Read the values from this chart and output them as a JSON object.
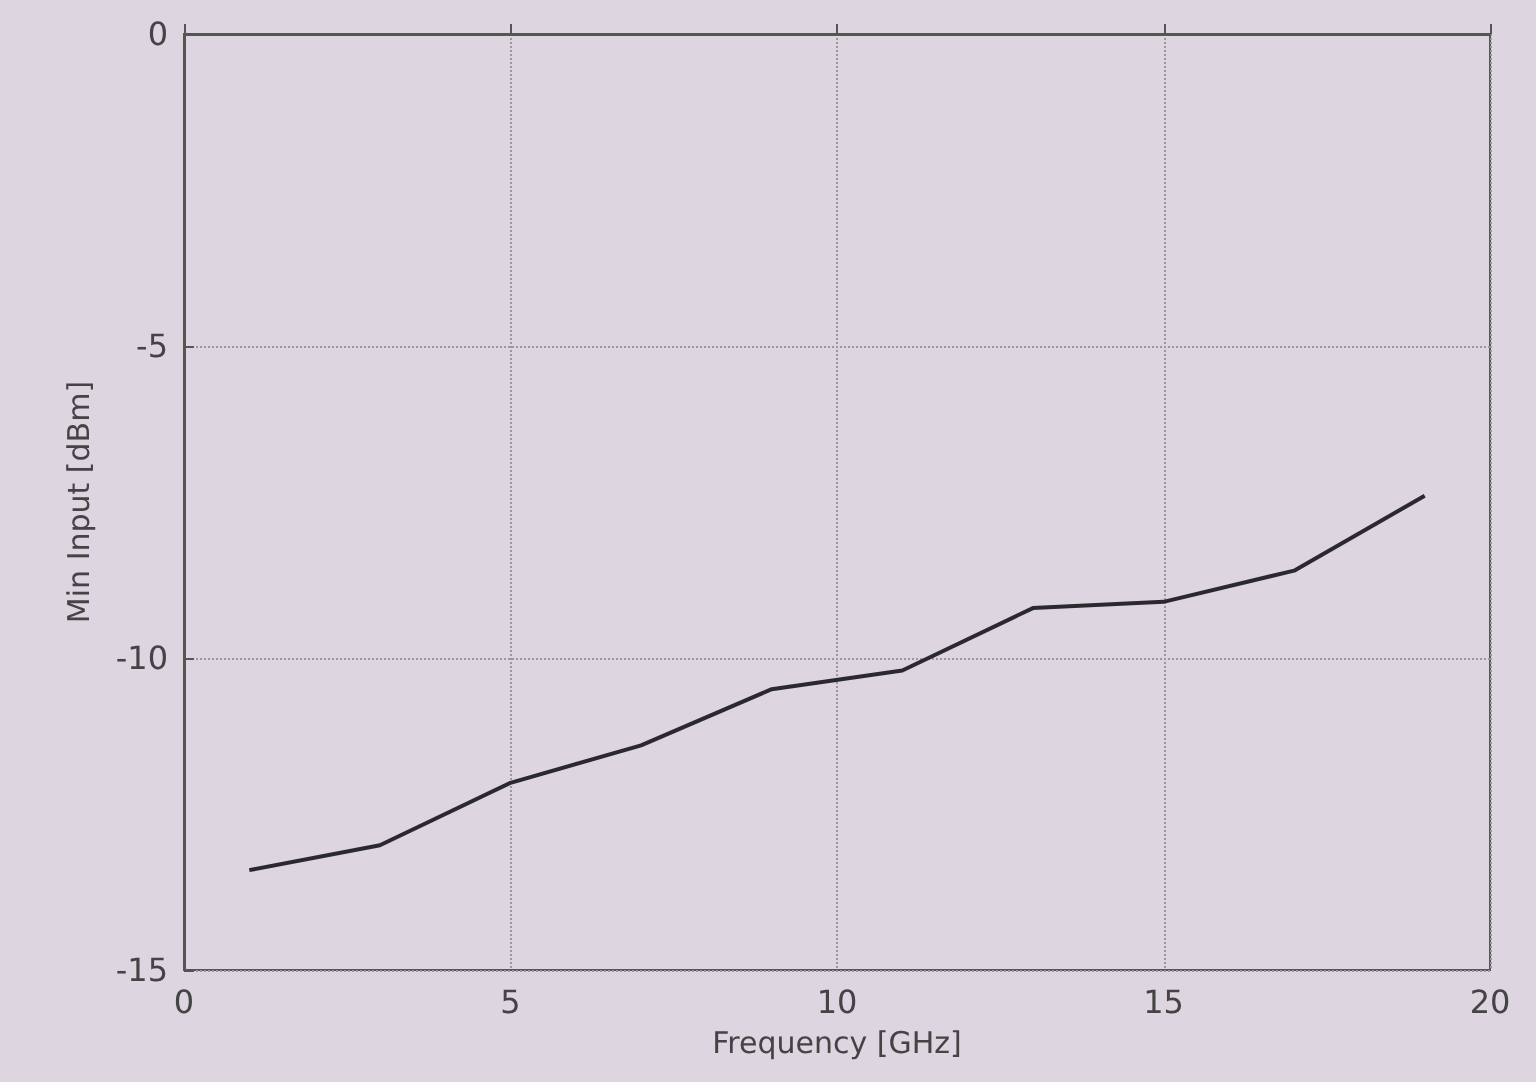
{
  "chart_data": {
    "type": "line",
    "xlabel": "Frequency [GHz]",
    "ylabel": "Min Input [dBm]",
    "x": [
      1,
      3,
      5,
      7,
      9,
      11,
      13,
      15,
      17,
      19
    ],
    "series": [
      {
        "color": "#2a2a2e",
        "values": [
          -13.4,
          -13.0,
          -12.0,
          -11.4,
          -10.5,
          -10.2,
          -9.2,
          -9.1,
          -8.6,
          -7.4
        ]
      }
    ],
    "xlim": [
      0,
      20
    ],
    "xticks": [
      0,
      5,
      10,
      15,
      20
    ],
    "ylim": [
      -15,
      0
    ],
    "yticks": [
      -15,
      -10,
      -5,
      0
    ],
    "grid": true,
    "marker": "none",
    "line_style": "solid"
  }
}
